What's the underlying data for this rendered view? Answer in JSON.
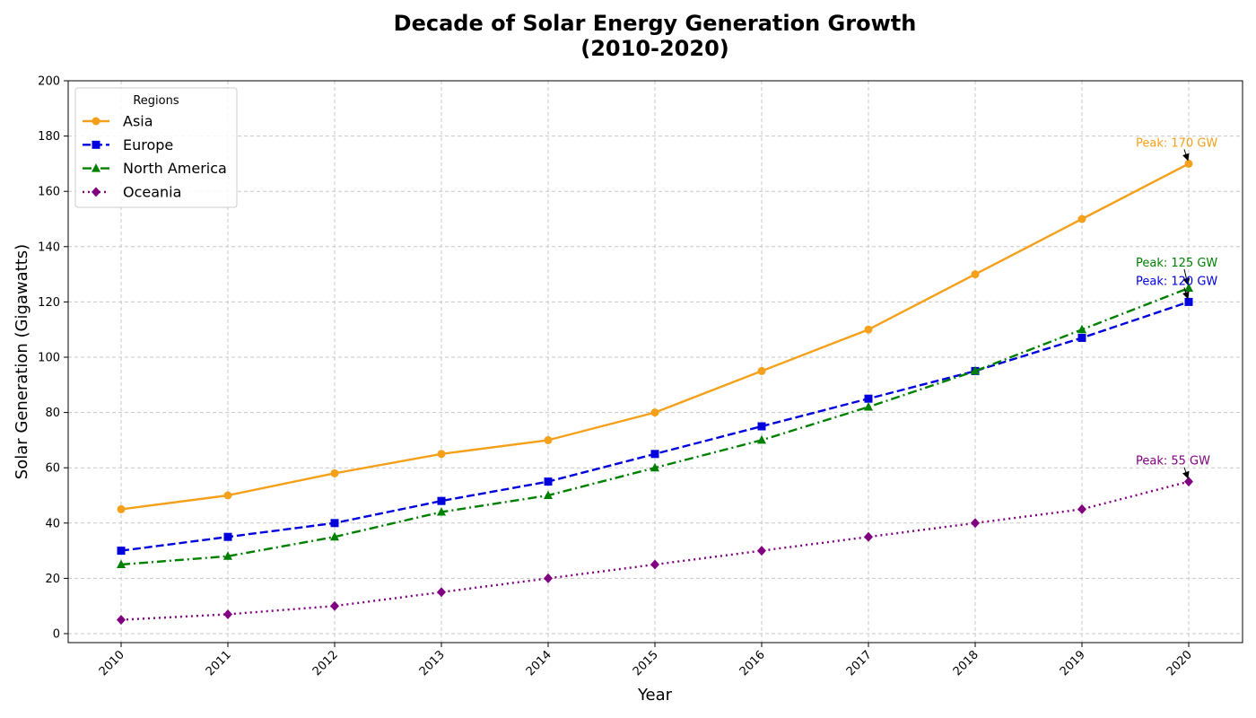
{
  "chart_data": {
    "type": "line",
    "title_line1": "Decade of Solar Energy Generation Growth",
    "title_line2": "(2010-2020)",
    "xlabel": "Year",
    "ylabel": "Solar Generation (Gigawatts)",
    "x": [
      2010,
      2011,
      2012,
      2013,
      2014,
      2015,
      2016,
      2017,
      2018,
      2019,
      2020
    ],
    "ylim": [
      0,
      200
    ],
    "yticks": [
      0,
      20,
      40,
      60,
      80,
      100,
      120,
      140,
      160,
      180,
      200
    ],
    "grid": true,
    "legend": {
      "title": "Regions",
      "placement": "top-left"
    },
    "series": [
      {
        "name": "Asia",
        "color": "#f5a01a",
        "line_style": "solid",
        "marker": "circle",
        "values": [
          45,
          50,
          58,
          65,
          70,
          80,
          95,
          110,
          130,
          150,
          170
        ]
      },
      {
        "name": "Europe",
        "color": "#0000dd",
        "line_style": "dashed",
        "marker": "square",
        "values": [
          30,
          35,
          40,
          48,
          55,
          65,
          75,
          85,
          95,
          107,
          120
        ]
      },
      {
        "name": "North America",
        "color": "#008000",
        "line_style": "dashdot",
        "marker": "triangle",
        "values": [
          25,
          28,
          35,
          44,
          50,
          60,
          70,
          82,
          95,
          110,
          125
        ]
      },
      {
        "name": "Oceania",
        "color": "#800080",
        "line_style": "dotted",
        "marker": "diamond",
        "values": [
          5,
          7,
          10,
          15,
          20,
          25,
          30,
          35,
          40,
          45,
          55
        ]
      }
    ],
    "annotations": [
      {
        "text": "Peak: 170 GW",
        "series": "Asia",
        "x": 2020,
        "y": 170
      },
      {
        "text": "Peak: 125 GW",
        "series": "North America",
        "x": 2020,
        "y": 125
      },
      {
        "text": "Peak: 120 GW",
        "series": "Europe",
        "x": 2020,
        "y": 120
      },
      {
        "text": "Peak: 55 GW",
        "series": "Oceania",
        "x": 2020,
        "y": 55
      }
    ]
  }
}
